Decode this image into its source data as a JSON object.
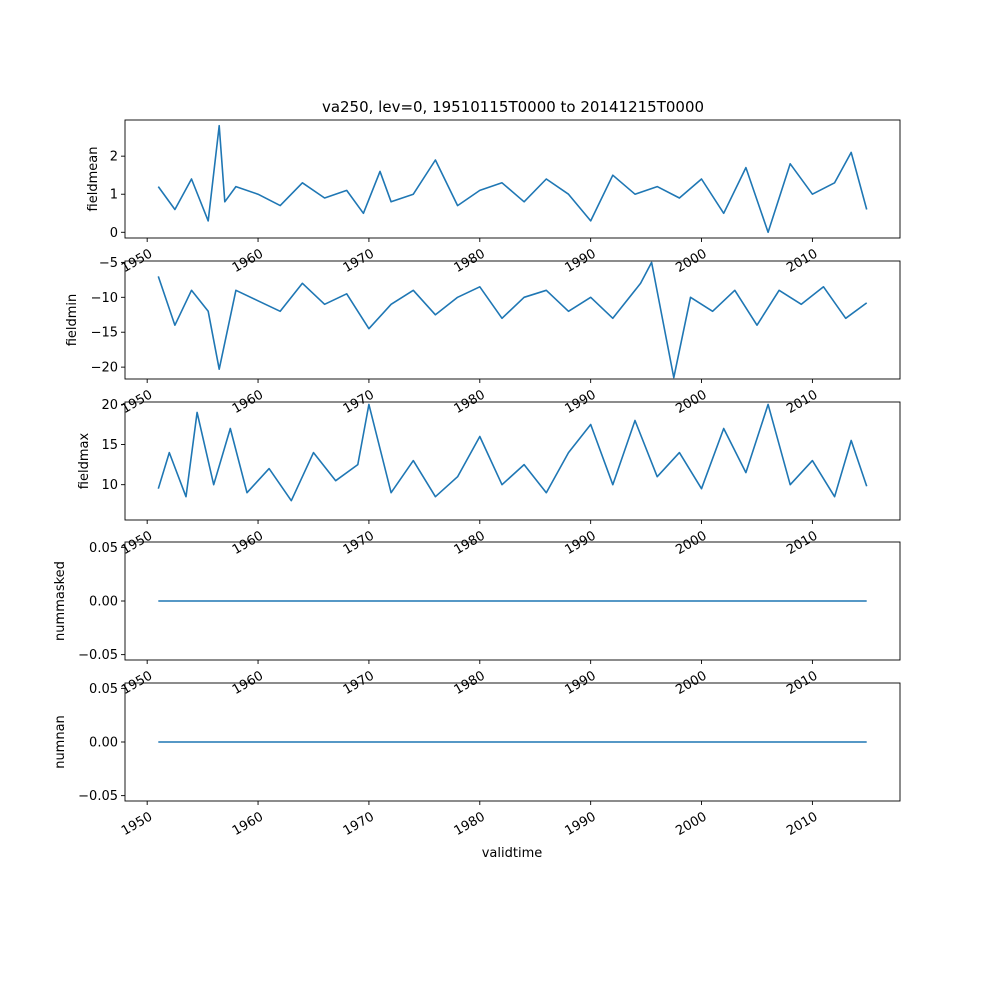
{
  "title": "va250, lev=0, 19510115T0000 to 20141215T0000",
  "xlabel": "validtime",
  "line_color": "#1f77b4",
  "chart_data": [
    {
      "type": "line",
      "ylabel": "fieldmean",
      "xlim": [
        1948.0,
        2017.9
      ],
      "ylim": [
        -0.15,
        2.95
      ],
      "x_ticks": [
        1950,
        1960,
        1970,
        1980,
        1990,
        2000,
        2010
      ],
      "y_ticks": [
        0,
        1,
        2
      ],
      "y_tick_labels": [
        "0",
        "1",
        "2"
      ],
      "x": [
        1951.0,
        1952.5,
        1954.0,
        1955.5,
        1956.5,
        1957.0,
        1958.0,
        1960.0,
        1962.0,
        1964.0,
        1966.0,
        1968.0,
        1969.5,
        1971.0,
        1972.0,
        1974.0,
        1976.0,
        1978.0,
        1980.0,
        1982.0,
        1984.0,
        1986.0,
        1988.0,
        1990.0,
        1992.0,
        1994.0,
        1996.0,
        1998.0,
        2000.0,
        2002.0,
        2004.0,
        2006.0,
        2008.0,
        2010.0,
        2012.0,
        2013.5,
        2014.9
      ],
      "y": [
        1.2,
        0.6,
        1.4,
        0.3,
        2.8,
        0.8,
        1.2,
        1.0,
        0.7,
        1.3,
        0.9,
        1.1,
        0.5,
        1.6,
        0.8,
        1.0,
        1.9,
        0.7,
        1.1,
        1.3,
        0.8,
        1.4,
        1.0,
        0.3,
        1.5,
        1.0,
        1.2,
        0.9,
        1.4,
        0.5,
        1.7,
        0.0,
        1.8,
        1.0,
        1.3,
        2.1,
        0.6
      ]
    },
    {
      "type": "line",
      "ylabel": "fieldmin",
      "xlim": [
        1948.0,
        2017.9
      ],
      "ylim": [
        -21.7,
        -4.8
      ],
      "x_ticks": [
        1950,
        1960,
        1970,
        1980,
        1990,
        2000,
        2010
      ],
      "y_ticks": [
        -20,
        -15,
        -10,
        -5
      ],
      "y_tick_labels": [
        "−20",
        "−15",
        "−10",
        "−5"
      ],
      "x": [
        1951.0,
        1952.5,
        1954.0,
        1955.5,
        1956.5,
        1958.0,
        1960.0,
        1962.0,
        1964.0,
        1966.0,
        1968.0,
        1970.0,
        1972.0,
        1974.0,
        1976.0,
        1978.0,
        1980.0,
        1982.0,
        1984.0,
        1986.0,
        1988.0,
        1990.0,
        1992.0,
        1994.5,
        1995.5,
        1997.5,
        1999.0,
        2001.0,
        2003.0,
        2005.0,
        2007.0,
        2009.0,
        2011.0,
        2013.0,
        2014.9
      ],
      "y": [
        -7.0,
        -14.0,
        -9.0,
        -12.0,
        -20.3,
        -9.0,
        -10.5,
        -12.0,
        -8.0,
        -11.0,
        -9.5,
        -14.5,
        -11.0,
        -9.0,
        -12.5,
        -10.0,
        -8.5,
        -13.0,
        -10.0,
        -9.0,
        -12.0,
        -10.0,
        -13.0,
        -8.0,
        -5.0,
        -21.5,
        -10.0,
        -12.0,
        -9.0,
        -14.0,
        -9.0,
        -11.0,
        -8.5,
        -13.0,
        -10.8
      ]
    },
    {
      "type": "line",
      "ylabel": "fieldmax",
      "xlim": [
        1948.0,
        2017.9
      ],
      "ylim": [
        5.6,
        20.3
      ],
      "x_ticks": [
        1950,
        1960,
        1970,
        1980,
        1990,
        2000,
        2010
      ],
      "y_ticks": [
        10,
        15,
        20
      ],
      "y_tick_labels": [
        "10",
        "15",
        "20"
      ],
      "x": [
        1951.0,
        1952.0,
        1953.5,
        1954.5,
        1956.0,
        1957.5,
        1959.0,
        1961.0,
        1963.0,
        1965.0,
        1967.0,
        1969.0,
        1970.0,
        1972.0,
        1974.0,
        1976.0,
        1978.0,
        1980.0,
        1982.0,
        1984.0,
        1986.0,
        1988.0,
        1990.0,
        1992.0,
        1994.0,
        1996.0,
        1998.0,
        2000.0,
        2002.0,
        2004.0,
        2006.0,
        2008.0,
        2010.0,
        2012.0,
        2013.5,
        2014.9
      ],
      "y": [
        9.5,
        14.0,
        8.5,
        19.0,
        10.0,
        17.0,
        9.0,
        12.0,
        8.0,
        14.0,
        10.5,
        12.5,
        20.0,
        9.0,
        13.0,
        8.5,
        11.0,
        16.0,
        10.0,
        12.5,
        9.0,
        14.0,
        17.5,
        10.0,
        18.0,
        11.0,
        14.0,
        9.5,
        17.0,
        11.5,
        20.0,
        10.0,
        13.0,
        8.5,
        15.5,
        9.8
      ]
    },
    {
      "type": "line",
      "ylabel": "nummasked",
      "xlim": [
        1948.0,
        2017.9
      ],
      "ylim": [
        -0.055,
        0.055
      ],
      "x_ticks": [
        1950,
        1960,
        1970,
        1980,
        1990,
        2000,
        2010
      ],
      "y_ticks": [
        -0.05,
        0.0,
        0.05
      ],
      "y_tick_labels": [
        "−0.05",
        "0.00",
        "0.05"
      ],
      "x": [
        1951.0,
        2014.9
      ],
      "y": [
        0.0,
        0.0
      ]
    },
    {
      "type": "line",
      "ylabel": "numnan",
      "xlim": [
        1948.0,
        2017.9
      ],
      "ylim": [
        -0.055,
        0.055
      ],
      "x_ticks": [
        1950,
        1960,
        1970,
        1980,
        1990,
        2000,
        2010
      ],
      "y_ticks": [
        -0.05,
        0.0,
        0.05
      ],
      "y_tick_labels": [
        "−0.05",
        "0.00",
        "0.05"
      ],
      "x": [
        1951.0,
        2014.9
      ],
      "y": [
        0.0,
        0.0
      ]
    }
  ]
}
